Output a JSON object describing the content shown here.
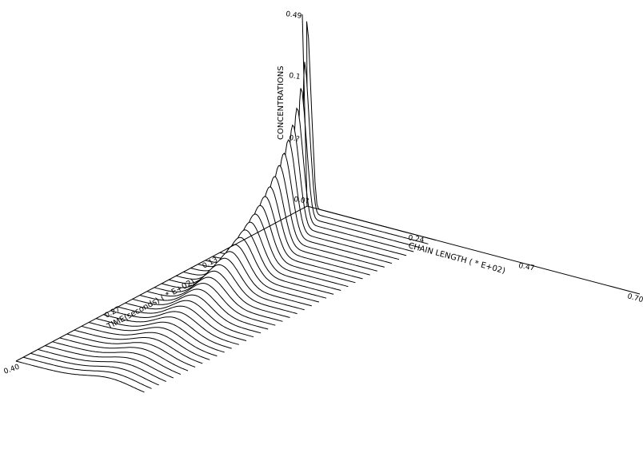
{
  "chart_data": {
    "type": "surface",
    "z_label": "CONCENTRATIONS",
    "x_label": "CHAIN LENGTH ( * E+02)",
    "y_label": "TIME(seconds) ( * E+02)",
    "z_ticks": [
      "0.49",
      "0.1",
      "0.?",
      "0.0?"
    ],
    "x_ticks": [
      "0.24",
      "0.47",
      "0.70"
    ],
    "y_ticks": [
      "0.13",
      "0.27",
      "0.40"
    ],
    "x_range": [
      0,
      0.7
    ],
    "y_range": [
      0,
      0.4
    ],
    "z_range": [
      0,
      0.49
    ],
    "num_time_slices": 41,
    "peak_concentration_first_slice": 0.49,
    "peak_concentration_last_slice": 0.02,
    "peak_chain_length_first_slice": 0.01,
    "peak_chain_length_last_slice": 0.2
  }
}
